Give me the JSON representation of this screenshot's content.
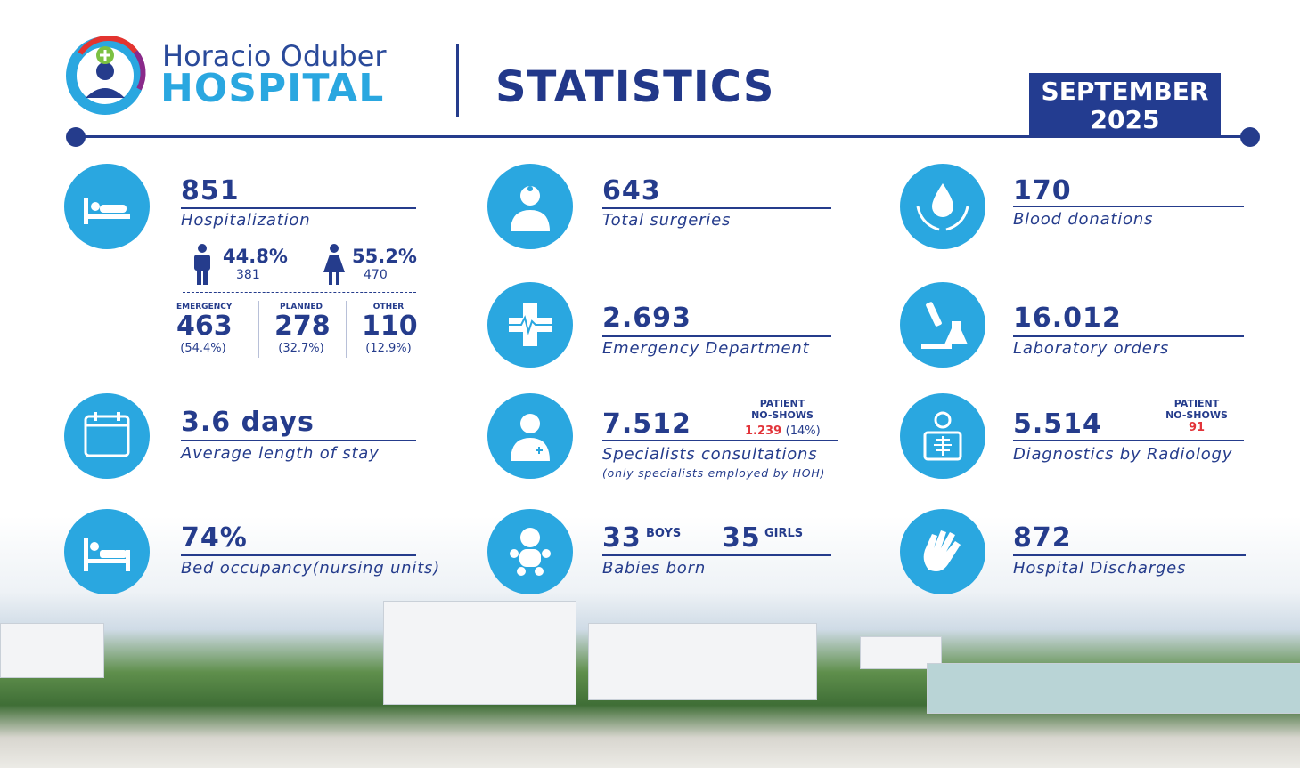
{
  "header": {
    "logo_name": "Horacio Oduber",
    "logo_hospital": "HOSPITAL",
    "title": "STATISTICS",
    "period_month": "SEPTEMBER",
    "period_year": "2025"
  },
  "stats": {
    "hospitalization": {
      "value": "851",
      "label": "Hospitalization",
      "male": {
        "percent": "44.8%",
        "count": "381"
      },
      "female": {
        "percent": "55.2%",
        "count": "470"
      },
      "breakdown": [
        {
          "label": "EMERGENCY",
          "value": "463",
          "percent": "(54.4%)"
        },
        {
          "label": "PLANNED",
          "value": "278",
          "percent": "(32.7%)"
        },
        {
          "label": "OTHER",
          "value": "110",
          "percent": "(12.9%)"
        }
      ]
    },
    "surgeries": {
      "value": "643",
      "label": "Total surgeries"
    },
    "blood_donations": {
      "value": "170",
      "label": "Blood donations"
    },
    "emergency_department": {
      "value": "2.693",
      "label": "Emergency Department"
    },
    "laboratory_orders": {
      "value": "16.012",
      "label": "Laboratory orders"
    },
    "length_of_stay": {
      "value": "3.6 days",
      "label": "Average length of stay"
    },
    "specialists": {
      "value": "7.512",
      "label": "Specialists consultations",
      "note": "(only specialists employed by HOH)",
      "no_shows": {
        "title_line1": "PATIENT",
        "title_line2": "NO-SHOWS",
        "value": "1.239",
        "percent": "(14%)"
      }
    },
    "radiology": {
      "value": "5.514",
      "label": "Diagnostics by Radiology",
      "no_shows": {
        "title_line1": "PATIENT",
        "title_line2": "NO-SHOWS",
        "value": "91"
      }
    },
    "bed_occupancy": {
      "value": "74%",
      "label": "Bed occupancy(nursing units)"
    },
    "babies": {
      "boys_value": "33",
      "boys_label": "BOYS",
      "girls_value": "35",
      "girls_label": "GIRLS",
      "label": "Babies born"
    },
    "discharges": {
      "value": "872",
      "label": "Hospital Discharges"
    }
  }
}
